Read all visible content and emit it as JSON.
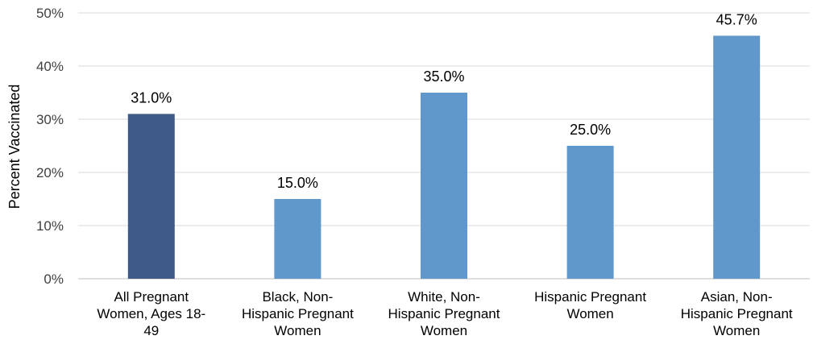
{
  "chart_data": {
    "type": "bar",
    "title": "",
    "ylabel": "Percent Vaccinated",
    "xlabel": "",
    "ylim": [
      0,
      50
    ],
    "y_ticks": [
      "0%",
      "10%",
      "20%",
      "30%",
      "40%",
      "50%"
    ],
    "grid": true,
    "categories": [
      [
        "All Pregnant",
        "Women, Ages 18-",
        "49"
      ],
      [
        "Black, Non-",
        "Hispanic Pregnant",
        "Women"
      ],
      [
        "White, Non-",
        "Hispanic Pregnant",
        "Women"
      ],
      [
        "Hispanic Pregnant",
        "Women"
      ],
      [
        "Asian, Non-",
        "Hispanic Pregnant",
        "Women"
      ]
    ],
    "values": [
      31.0,
      15.0,
      35.0,
      25.0,
      45.7
    ],
    "data_labels": [
      "31.0%",
      "15.0%",
      "35.0%",
      "25.0%",
      "45.7%"
    ],
    "colors": [
      "#44546a",
      "#5b9bd5",
      "#5b9bd5",
      "#5b9bd5",
      "#5b9bd5"
    ],
    "bar_colors": [
      "#3f5a87",
      "#6198cb",
      "#6198cb",
      "#6198cb",
      "#6198cb"
    ]
  }
}
